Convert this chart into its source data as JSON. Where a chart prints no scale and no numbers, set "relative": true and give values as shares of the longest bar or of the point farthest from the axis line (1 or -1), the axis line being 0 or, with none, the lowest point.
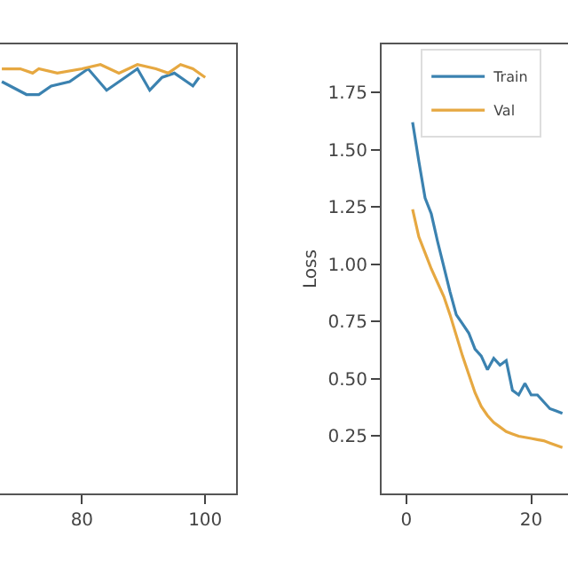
{
  "chart_data": [
    {
      "type": "line",
      "relative": true,
      "tick_labels": "x",
      "legend": false,
      "xlim": [
        66.7,
        104.95
      ],
      "xticks": [
        80,
        100
      ],
      "series": [
        {
          "color": "#3b82b0",
          "x": [
            67,
            71,
            73,
            75,
            78,
            81,
            84,
            87,
            89,
            91,
            93,
            95,
            97,
            98,
            99
          ],
          "values": [
            0.96,
            0.93,
            0.93,
            0.95,
            0.96,
            0.99,
            0.94,
            0.97,
            0.99,
            0.94,
            0.97,
            0.98,
            0.96,
            0.95,
            0.97
          ]
        },
        {
          "color": "#e6a841",
          "x": [
            67,
            70,
            72,
            73,
            76,
            80,
            83,
            86,
            89,
            92,
            94,
            96,
            98,
            100
          ],
          "values": [
            0.99,
            0.99,
            0.98,
            0.99,
            0.98,
            0.99,
            1.0,
            0.98,
            1.0,
            0.99,
            0.98,
            1.0,
            0.99,
            0.97
          ]
        }
      ]
    },
    {
      "type": "line",
      "ylabel": "Loss",
      "legend": "top left",
      "xlim": [
        -3.95,
        25.9
      ],
      "xticks": [
        0,
        20
      ],
      "ylim": [
        0,
        1.96
      ],
      "yticks": [
        0.25,
        {
          "value": 0.5,
          "label": "0.50"
        },
        0.75,
        {
          "value": 1.0,
          "label": "1.00"
        },
        1.25,
        {
          "value": 1.5,
          "label": "1.50"
        },
        1.75
      ],
      "x": [
        1,
        2,
        3,
        4,
        5,
        6,
        7,
        8,
        9,
        10,
        11,
        12,
        13,
        14,
        15,
        16,
        17,
        18,
        19,
        20,
        21,
        22,
        23,
        24,
        25
      ],
      "series": [
        {
          "name": "Train",
          "color": "#3b82b0",
          "values": [
            1.62,
            1.45,
            1.29,
            1.22,
            1.1,
            0.99,
            0.88,
            0.78,
            0.74,
            0.7,
            0.63,
            0.6,
            0.54,
            0.59,
            0.56,
            0.58,
            0.45,
            0.43,
            0.48,
            0.43,
            0.43,
            0.4,
            0.37,
            0.36,
            0.35
          ]
        },
        {
          "name": "Val",
          "color": "#e6a841",
          "values": [
            1.24,
            1.12,
            1.05,
            0.98,
            0.92,
            0.86,
            0.78,
            0.69,
            0.6,
            0.52,
            0.44,
            0.38,
            0.34,
            0.31,
            0.29,
            0.27,
            0.26,
            0.25,
            0.245,
            0.24,
            0.235,
            0.23,
            0.22,
            0.21,
            0.2
          ]
        }
      ]
    }
  ]
}
